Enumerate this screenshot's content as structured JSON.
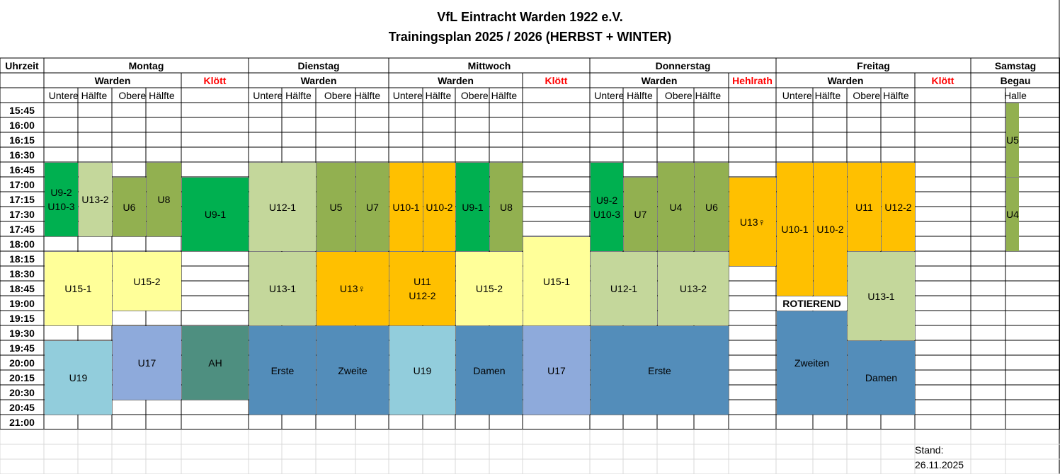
{
  "header": {
    "club": "VfL Eintracht Warden 1922 e.V.",
    "plan": "Trainingsplan 2025 / 2026 (HERBST + WINTER)"
  },
  "columns": {
    "time_label": "Uhrzeit",
    "days": [
      "Montag",
      "Dienstag",
      "Mittwoch",
      "Donnerstag",
      "Freitag",
      "Samstag"
    ],
    "locations": [
      "Warden",
      "Klött",
      "Warden",
      "Warden",
      "Klött",
      "Warden",
      "Hehlrath",
      "Warden",
      "Klött",
      "Begau"
    ],
    "subs": [
      "Untere Hälfte",
      "Obere Hälfte",
      "Untere Hälfte",
      "Obere Hälfte",
      "Untere Hälfte",
      "Obere Hälfte",
      "Untere Hälfte",
      "Obere Hälfte",
      "Untere Hälfte",
      "Obere Hälfte",
      "Halle"
    ]
  },
  "times": [
    "15:45",
    "16:00",
    "16:15",
    "16:30",
    "16:45",
    "17:00",
    "17:15",
    "17:30",
    "17:45",
    "18:00",
    "18:15",
    "18:30",
    "18:45",
    "19:00",
    "19:15",
    "19:30",
    "19:45",
    "20:00",
    "20:15",
    "20:30",
    "20:45",
    "21:00"
  ],
  "colors": {
    "green": "#00b050",
    "light_green": "#c4d79b",
    "olive": "#92b050",
    "orange": "#ffc000",
    "yellow": "#ffff99",
    "blue_light": "#8eaadb",
    "cyan": "#92cddc",
    "steel": "#538dba",
    "teal": "#4e8f80"
  },
  "blocks": [
    {
      "lines": [
        "U9-2",
        "U10-3"
      ],
      "color": "green"
    },
    {
      "lines": [
        "U13-2"
      ],
      "color": "light_green"
    },
    {
      "lines": [
        "U6"
      ],
      "color": "olive"
    },
    {
      "lines": [
        "U8"
      ],
      "color": "olive"
    },
    {
      "lines": [
        "U9-1"
      ],
      "color": "green"
    },
    {
      "lines": [
        "U15-1"
      ],
      "color": "yellow"
    },
    {
      "lines": [
        "U15-2"
      ],
      "color": "yellow"
    },
    {
      "lines": [
        "U19"
      ],
      "color": "cyan"
    },
    {
      "lines": [
        "U17"
      ],
      "color": "blue_light"
    },
    {
      "lines": [
        "AH"
      ],
      "color": "teal"
    },
    {
      "lines": [
        "U12-1"
      ],
      "color": "light_green"
    },
    {
      "lines": [
        "U5"
      ],
      "color": "olive"
    },
    {
      "lines": [
        "U7"
      ],
      "color": "olive"
    },
    {
      "lines": [
        "U13-1"
      ],
      "color": "light_green"
    },
    {
      "lines": [
        "U13♀"
      ],
      "color": "orange"
    },
    {
      "lines": [
        "Erste"
      ],
      "color": "steel"
    },
    {
      "lines": [
        "Zweite"
      ],
      "color": "steel"
    },
    {
      "lines": [
        "U10-1"
      ],
      "color": "orange"
    },
    {
      "lines": [
        "U10-2"
      ],
      "color": "orange"
    },
    {
      "lines": [
        "U9-1"
      ],
      "color": "green"
    },
    {
      "lines": [
        "U8"
      ],
      "color": "olive"
    },
    {
      "lines": [
        "U11",
        "U12-2"
      ],
      "color": "orange"
    },
    {
      "lines": [
        "U15-2"
      ],
      "color": "yellow"
    },
    {
      "lines": [
        "U19"
      ],
      "color": "cyan"
    },
    {
      "lines": [
        "Damen"
      ],
      "color": "steel"
    },
    {
      "lines": [
        "U15-1"
      ],
      "color": "yellow"
    },
    {
      "lines": [
        "U17"
      ],
      "color": "blue_light"
    },
    {
      "lines": [
        "U9-2",
        "U10-3"
      ],
      "color": "green"
    },
    {
      "lines": [
        "U7"
      ],
      "color": "olive"
    },
    {
      "lines": [
        "U4"
      ],
      "color": "olive"
    },
    {
      "lines": [
        "U6"
      ],
      "color": "olive"
    },
    {
      "lines": [
        "U12-1"
      ],
      "color": "light_green"
    },
    {
      "lines": [
        "U13-2"
      ],
      "color": "light_green"
    },
    {
      "lines": [
        "Erste"
      ],
      "color": "steel"
    },
    {
      "lines": [
        "U13♀"
      ],
      "color": "orange"
    },
    {
      "lines": [
        "U10-1"
      ],
      "color": "orange"
    },
    {
      "lines": [
        "U10-2"
      ],
      "color": "orange"
    },
    {
      "lines": [
        "U11"
      ],
      "color": "orange"
    },
    {
      "lines": [
        "U12-2"
      ],
      "color": "orange"
    },
    {
      "lines": [
        "U13-1"
      ],
      "color": "light_green"
    },
    {
      "lines": [
        "ROTIEREND"
      ],
      "color": "white",
      "bold": true
    },
    {
      "lines": [
        "Zweiten"
      ],
      "color": "steel"
    },
    {
      "lines": [
        "Damen"
      ],
      "color": "steel"
    },
    {
      "lines": [
        "U5"
      ],
      "color": "olive"
    },
    {
      "lines": [
        "U4"
      ],
      "color": "olive"
    }
  ],
  "stand": {
    "label": "Stand:",
    "date": "26.11.2025"
  }
}
